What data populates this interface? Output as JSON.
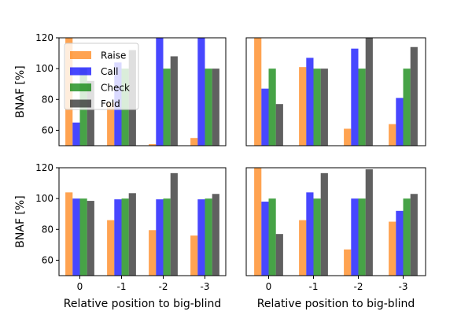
{
  "chart_data": [
    {
      "type": "bar",
      "categories": [
        "0",
        "-1",
        "-2",
        "-3"
      ],
      "ylabel": "BNAF [%]",
      "xlabel": "",
      "ylim": [
        50,
        120
      ],
      "yticks": [
        "60",
        "80",
        "100",
        "120"
      ],
      "show_yticks": true,
      "show_xticks": false,
      "legend": "top-left",
      "series": [
        {
          "name": "Raise",
          "color": "#ff7f0e",
          "values": [
            120,
            78,
            51,
            55
          ]
        },
        {
          "name": "Call",
          "color": "#0000ff",
          "values": [
            65,
            104,
            120,
            120
          ]
        },
        {
          "name": "Check",
          "color": "#008000",
          "values": [
            100,
            100,
            100,
            100
          ]
        },
        {
          "name": "Fold",
          "color": "#222222",
          "values": [
            92,
            112,
            108,
            100
          ]
        }
      ]
    },
    {
      "type": "bar",
      "categories": [
        "0",
        "-1",
        "-2",
        "-3"
      ],
      "ylabel": "",
      "xlabel": "",
      "ylim": [
        50,
        120
      ],
      "yticks": [
        "60",
        "80",
        "100",
        "120"
      ],
      "show_yticks": false,
      "show_xticks": false,
      "series": [
        {
          "color": "#ff7f0e",
          "values": [
            120,
            101,
            61,
            64
          ]
        },
        {
          "color": "#0000ff",
          "values": [
            87,
            107,
            113,
            81
          ]
        },
        {
          "color": "#008000",
          "values": [
            100,
            100,
            100,
            100
          ]
        },
        {
          "color": "#222222",
          "values": [
            77,
            100,
            120,
            114
          ]
        }
      ]
    },
    {
      "type": "bar",
      "categories": [
        "0",
        "-1",
        "-2",
        "-3"
      ],
      "ylabel": "BNAF [%]",
      "xlabel": "Relative position to big-blind",
      "ylim": [
        50,
        120
      ],
      "yticks": [
        "60",
        "80",
        "100",
        "120"
      ],
      "show_yticks": true,
      "show_xticks": true,
      "series": [
        {
          "color": "#ff7f0e",
          "values": [
            104,
            86,
            79.5,
            76
          ]
        },
        {
          "color": "#0000ff",
          "values": [
            100,
            99.5,
            99.5,
            99.5
          ]
        },
        {
          "color": "#008000",
          "values": [
            100,
            100,
            100,
            100
          ]
        },
        {
          "color": "#222222",
          "values": [
            98.5,
            103.5,
            116.5,
            103
          ]
        }
      ]
    },
    {
      "type": "bar",
      "categories": [
        "0",
        "-1",
        "-2",
        "-3"
      ],
      "ylabel": "",
      "xlabel": "Relative position to big-blind",
      "ylim": [
        50,
        120
      ],
      "yticks": [
        "60",
        "80",
        "100",
        "120"
      ],
      "show_yticks": false,
      "show_xticks": true,
      "series": [
        {
          "color": "#ff7f0e",
          "values": [
            120,
            86,
            67,
            85
          ]
        },
        {
          "color": "#0000ff",
          "values": [
            98,
            104,
            100,
            92
          ]
        },
        {
          "color": "#008000",
          "values": [
            100,
            100,
            100,
            100
          ]
        },
        {
          "color": "#222222",
          "values": [
            77,
            116.5,
            119,
            103
          ]
        }
      ]
    }
  ]
}
